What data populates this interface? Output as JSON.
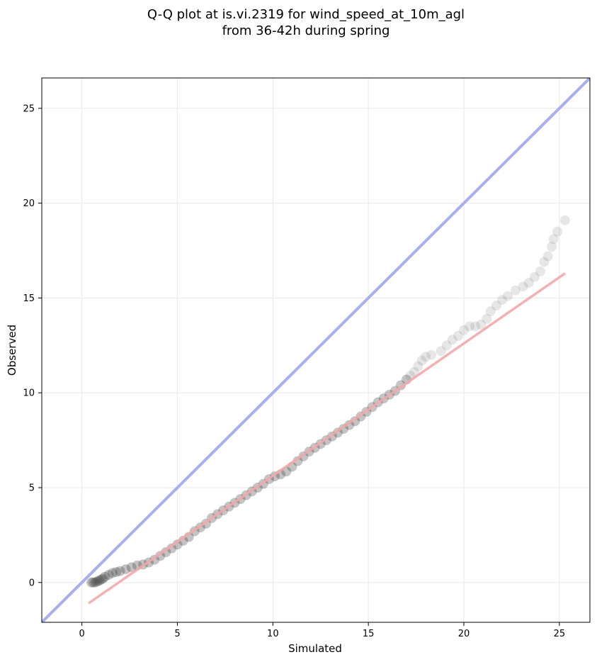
{
  "chart_data": {
    "type": "scatter",
    "title": "Q-Q plot at is.vi.2319 for wind_speed_at_10m_agl",
    "subtitle": "from 36-42h during spring",
    "xlabel": "Simulated",
    "ylabel": "Observed",
    "xlim": [
      -2.1,
      26.6
    ],
    "ylim": [
      -2.1,
      26.6
    ],
    "xticks": [
      0,
      5,
      10,
      15,
      20,
      25
    ],
    "yticks": [
      0,
      5,
      10,
      15,
      20,
      25
    ],
    "grid": true,
    "reference_line": {
      "x": [
        -2.1,
        26.6
      ],
      "y": [
        -2.1,
        26.6
      ],
      "color": "#a8aef0"
    },
    "fit_line": {
      "x": [
        0.35,
        25.3
      ],
      "y": [
        -1.1,
        16.3
      ],
      "color": "#f2a8a8"
    },
    "point_color": "#3a3a3a",
    "points": [
      [
        0.5,
        0.0
      ],
      [
        0.6,
        0.0
      ],
      [
        0.7,
        0.0
      ],
      [
        0.8,
        0.05
      ],
      [
        0.9,
        0.1
      ],
      [
        1.0,
        0.15
      ],
      [
        1.1,
        0.2
      ],
      [
        1.2,
        0.3
      ],
      [
        1.4,
        0.4
      ],
      [
        1.6,
        0.5
      ],
      [
        1.8,
        0.55
      ],
      [
        2.0,
        0.6
      ],
      [
        2.3,
        0.7
      ],
      [
        2.6,
        0.8
      ],
      [
        2.9,
        0.9
      ],
      [
        3.2,
        0.95
      ],
      [
        3.5,
        1.05
      ],
      [
        3.8,
        1.2
      ],
      [
        4.1,
        1.4
      ],
      [
        4.4,
        1.6
      ],
      [
        4.7,
        1.8
      ],
      [
        5.0,
        2.0
      ],
      [
        5.3,
        2.2
      ],
      [
        5.6,
        2.4
      ],
      [
        5.9,
        2.7
      ],
      [
        6.2,
        2.9
      ],
      [
        6.5,
        3.1
      ],
      [
        6.8,
        3.4
      ],
      [
        7.1,
        3.6
      ],
      [
        7.4,
        3.8
      ],
      [
        7.7,
        4.0
      ],
      [
        8.0,
        4.2
      ],
      [
        8.3,
        4.4
      ],
      [
        8.6,
        4.6
      ],
      [
        8.9,
        4.8
      ],
      [
        9.2,
        5.0
      ],
      [
        9.5,
        5.2
      ],
      [
        9.8,
        5.45
      ],
      [
        10.1,
        5.6
      ],
      [
        10.4,
        5.7
      ],
      [
        10.7,
        5.85
      ],
      [
        11.0,
        6.1
      ],
      [
        11.3,
        6.4
      ],
      [
        11.6,
        6.65
      ],
      [
        11.9,
        6.9
      ],
      [
        12.2,
        7.1
      ],
      [
        12.5,
        7.3
      ],
      [
        12.8,
        7.5
      ],
      [
        13.1,
        7.7
      ],
      [
        13.4,
        7.9
      ],
      [
        13.7,
        8.1
      ],
      [
        14.0,
        8.3
      ],
      [
        14.3,
        8.5
      ],
      [
        14.6,
        8.75
      ],
      [
        14.9,
        9.0
      ],
      [
        15.2,
        9.25
      ],
      [
        15.5,
        9.5
      ],
      [
        15.8,
        9.7
      ],
      [
        16.1,
        9.9
      ],
      [
        16.4,
        10.1
      ],
      [
        16.7,
        10.4
      ],
      [
        17.0,
        10.7
      ],
      [
        17.2,
        10.9
      ],
      [
        17.4,
        11.1
      ],
      [
        17.6,
        11.4
      ],
      [
        17.8,
        11.7
      ],
      [
        18.0,
        11.9
      ],
      [
        18.3,
        12.0
      ],
      [
        18.8,
        12.2
      ],
      [
        19.1,
        12.5
      ],
      [
        19.4,
        12.8
      ],
      [
        19.7,
        13.0
      ],
      [
        20.0,
        13.3
      ],
      [
        20.3,
        13.5
      ],
      [
        20.6,
        13.5
      ],
      [
        20.9,
        13.6
      ],
      [
        21.2,
        13.9
      ],
      [
        21.4,
        14.3
      ],
      [
        21.7,
        14.6
      ],
      [
        22.0,
        14.9
      ],
      [
        22.3,
        15.1
      ],
      [
        22.7,
        15.4
      ],
      [
        23.1,
        15.6
      ],
      [
        23.4,
        15.8
      ],
      [
        23.7,
        16.1
      ],
      [
        24.0,
        16.4
      ],
      [
        24.2,
        16.9
      ],
      [
        24.4,
        17.2
      ],
      [
        24.6,
        17.7
      ],
      [
        24.7,
        18.1
      ],
      [
        24.9,
        18.5
      ],
      [
        25.3,
        19.1
      ]
    ]
  }
}
